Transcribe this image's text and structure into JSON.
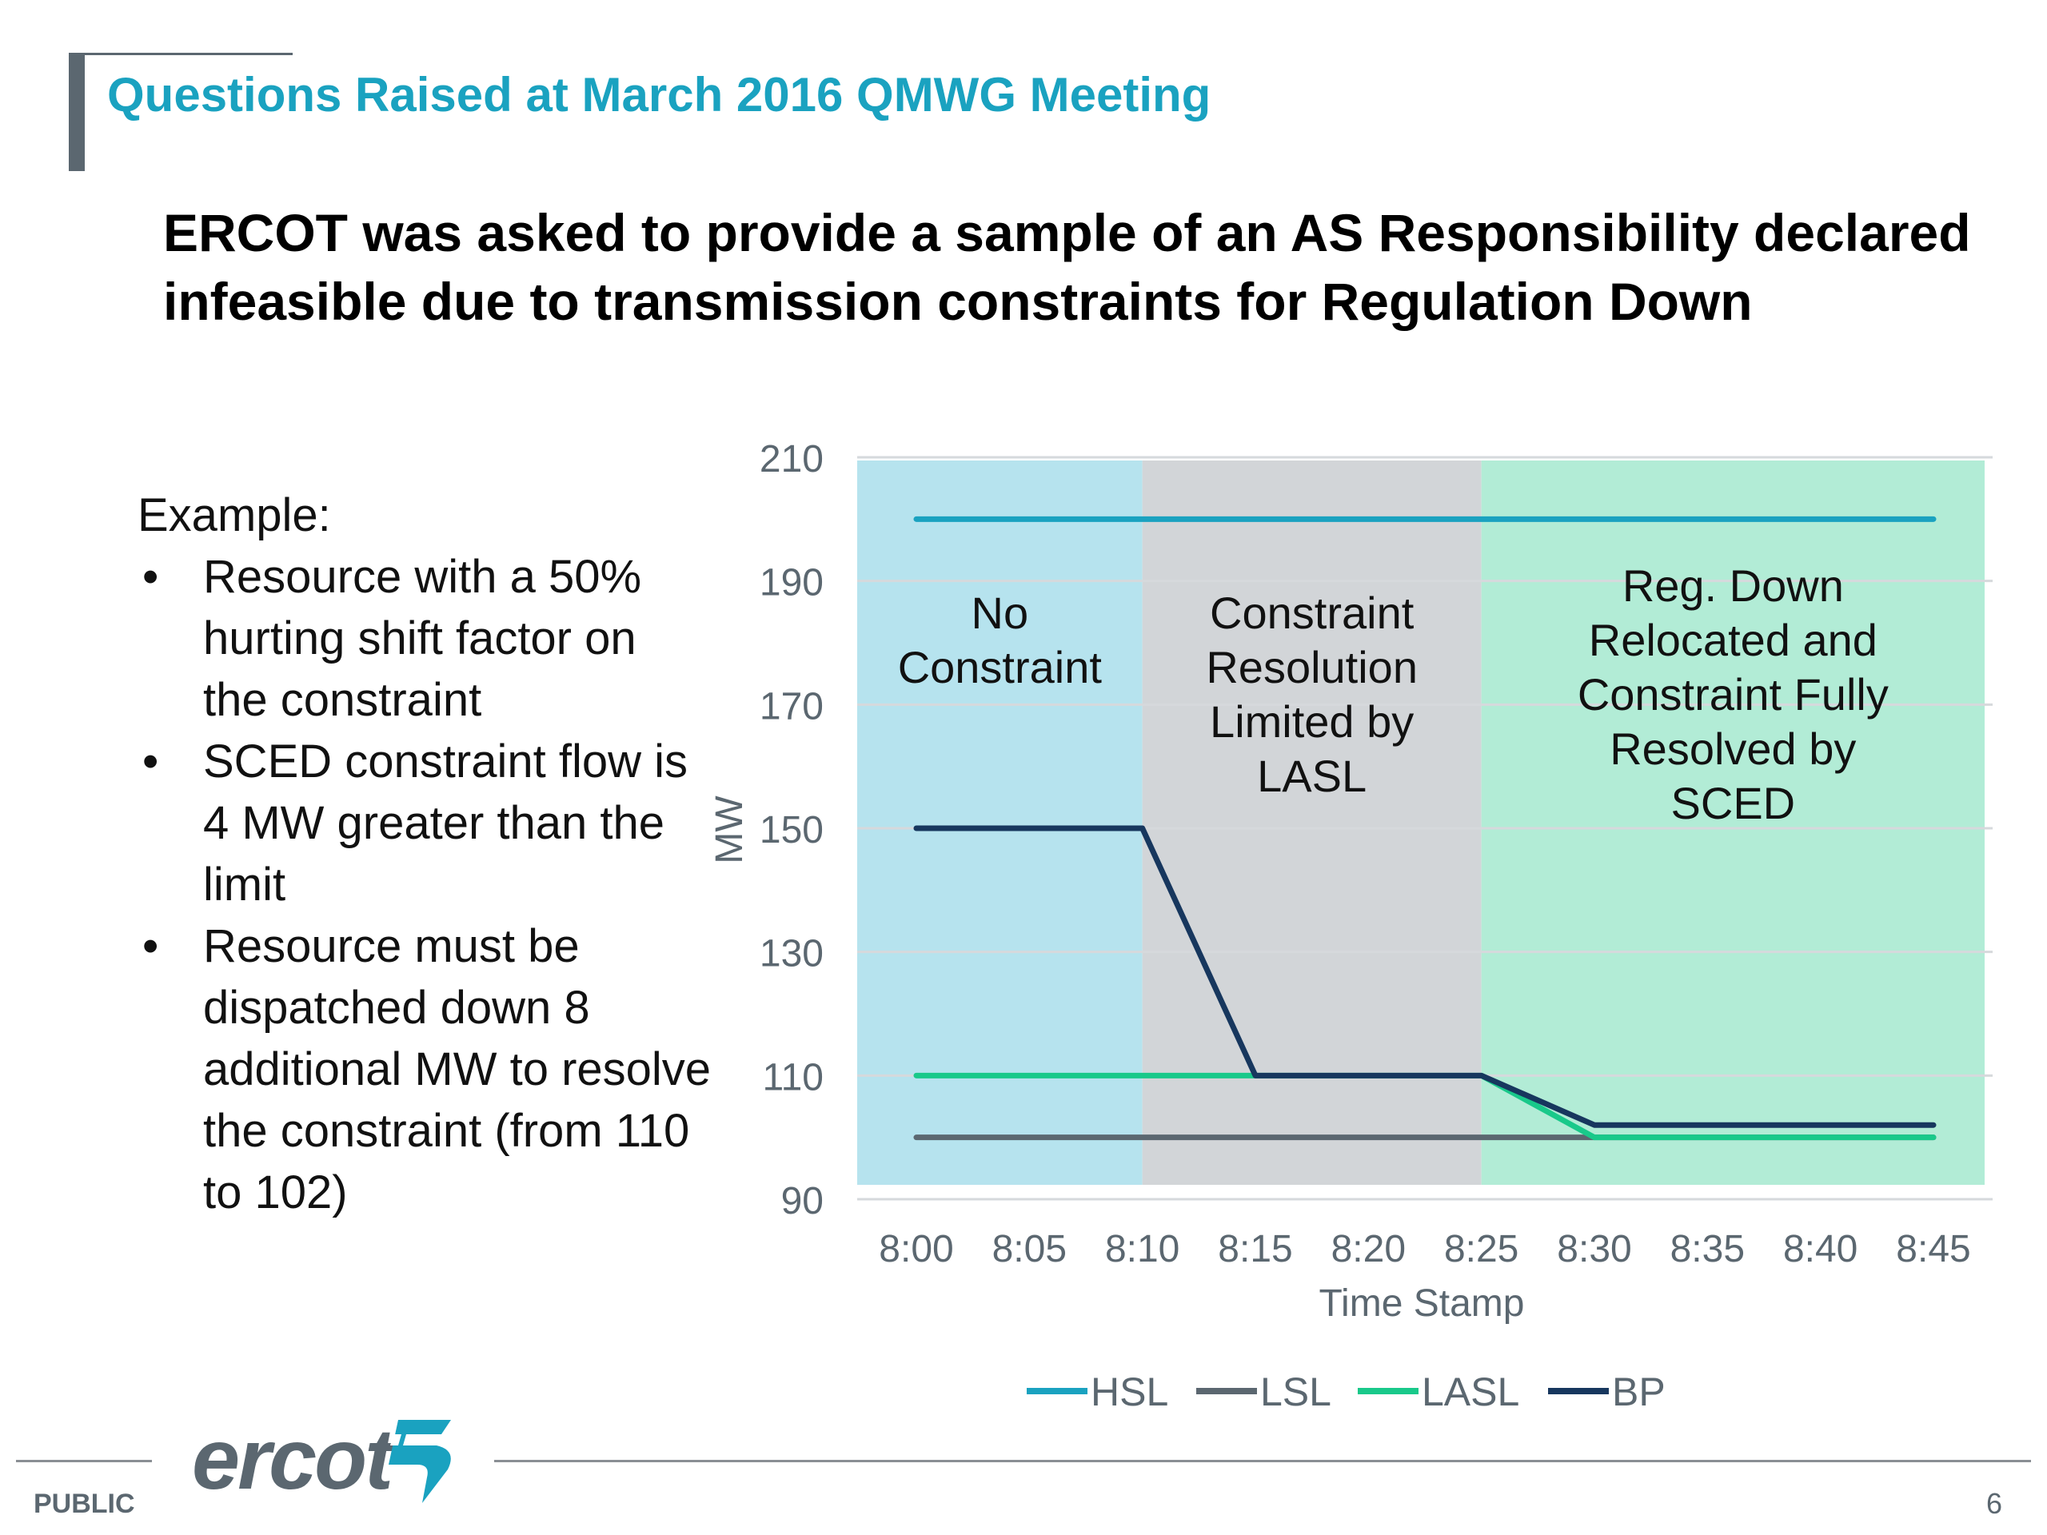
{
  "slide": {
    "title": "Questions Raised at March 2016 QMWG Meeting",
    "subtitle": "ERCOT was asked to provide a sample of an AS Responsibility declared infeasible due to transmission constraints for Regulation Down",
    "example_heading": "Example:",
    "bullets": [
      "Resource with a 50% hurting shift factor on the constraint",
      "SCED constraint flow is 4 MW greater than the limit",
      "Resource must be dispatched down 8 additional MW to resolve the constraint (from 110 to 102)"
    ],
    "bullet_glyph": "•"
  },
  "chart_data": {
    "type": "line",
    "title": "",
    "xlabel": "Time Stamp",
    "ylabel": "MW",
    "categories": [
      "8:00",
      "8:05",
      "8:10",
      "8:15",
      "8:20",
      "8:25",
      "8:30",
      "8:35",
      "8:40",
      "8:45"
    ],
    "ylim": [
      90,
      210
    ],
    "yticks": [
      90,
      110,
      130,
      150,
      170,
      190,
      210
    ],
    "grid": true,
    "legend_position": "bottom",
    "series": [
      {
        "name": "HSL",
        "color": "#1aa2c0",
        "values": [
          200,
          200,
          200,
          200,
          200,
          200,
          200,
          200,
          200,
          200
        ]
      },
      {
        "name": "LSL",
        "color": "#5b6770",
        "values": [
          100,
          100,
          100,
          100,
          100,
          100,
          100,
          100,
          100,
          100
        ]
      },
      {
        "name": "LASL",
        "color": "#19c98a",
        "values": [
          110,
          110,
          110,
          110,
          110,
          110,
          100,
          100,
          100,
          100
        ]
      },
      {
        "name": "BP",
        "color": "#17375e",
        "values": [
          150,
          150,
          150,
          110,
          110,
          110,
          102,
          102,
          102,
          102
        ]
      }
    ],
    "regions": [
      {
        "label": [
          "No",
          "Constraint"
        ],
        "from": "8:00",
        "to": "8:10",
        "color": "#b6e3ee"
      },
      {
        "label": [
          "Constraint",
          "Resolution",
          "Limited by",
          "LASL"
        ],
        "from": "8:10",
        "to": "8:25",
        "color": "#d2d5d8"
      },
      {
        "label": [
          "Reg. Down",
          "Relocated and",
          "Constraint Fully",
          "Resolved by",
          "SCED"
        ],
        "from": "8:25",
        "to": "8:45",
        "color": "#b2ecd6"
      }
    ]
  },
  "footer": {
    "logo_text": "ercot",
    "classification": "PUBLIC",
    "page_number": "6"
  }
}
